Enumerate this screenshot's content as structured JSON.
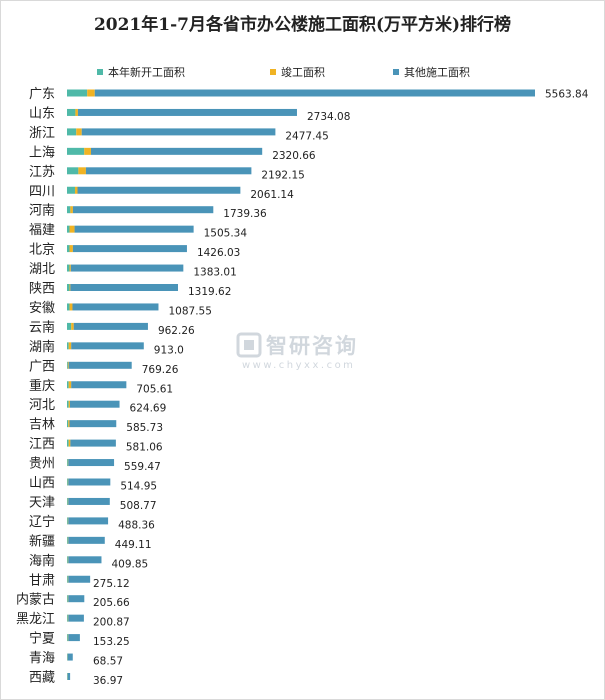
{
  "chart_data": {
    "type": "bar",
    "orientation": "horizontal",
    "stacked": true,
    "title": "2021年1-7月各省市办公楼施工面积(万平方米)排行榜",
    "legend_position": "top",
    "categories": [
      "广东",
      "山东",
      "浙江",
      "上海",
      "江苏",
      "四川",
      "河南",
      "福建",
      "北京",
      "湖北",
      "陕西",
      "安徽",
      "云南",
      "湖南",
      "广西",
      "重庆",
      "河北",
      "吉林",
      "江西",
      "贵州",
      "山西",
      "天津",
      "辽宁",
      "新疆",
      "海南",
      "甘肃",
      "内蒙古",
      "黑龙江",
      "宁夏",
      "青海",
      "西藏"
    ],
    "totals": [
      "5563.84",
      "2734.08",
      "2477.45",
      "2320.66",
      "2192.15",
      "2061.14",
      "1739.36",
      "1505.34",
      "1426.03",
      "1383.01",
      "1319.62",
      "1087.55",
      "962.26",
      "913.0",
      "769.26",
      "705.61",
      "624.69",
      "585.73",
      "581.06",
      "559.47",
      "514.95",
      "508.77",
      "488.36",
      "449.11",
      "409.85",
      "275.12",
      "205.66",
      "200.87",
      "153.25",
      "68.57",
      "36.97"
    ],
    "series": [
      {
        "name": "本年新开工面积",
        "color": "#4fb9a8",
        "values": [
          240,
          100,
          110,
          205,
          135,
          95,
          40,
          30,
          30,
          30,
          30,
          30,
          50,
          20,
          10,
          20,
          20,
          15,
          20,
          10,
          10,
          10,
          10,
          10,
          10,
          10,
          10,
          10,
          10,
          5,
          5
        ]
      },
      {
        "name": "竣工面积",
        "color": "#f0b323",
        "values": [
          90,
          30,
          65,
          80,
          90,
          30,
          30,
          60,
          40,
          15,
          10,
          35,
          30,
          30,
          10,
          30,
          15,
          15,
          20,
          5,
          5,
          5,
          5,
          5,
          5,
          5,
          5,
          5,
          5,
          3,
          3
        ]
      },
      {
        "name": "其他施工面积",
        "color": "#4a94b8",
        "values": [
          5233.84,
          2604.08,
          2302.45,
          2035.66,
          1967.15,
          1936.14,
          1669.36,
          1415.34,
          1356.03,
          1338.01,
          1279.62,
          1022.55,
          882.26,
          863.0,
          749.26,
          655.61,
          589.69,
          555.73,
          541.06,
          544.47,
          499.95,
          493.77,
          473.36,
          434.11,
          394.85,
          260.12,
          190.66,
          185.87,
          138.25,
          60.57,
          28.97
        ]
      }
    ]
  },
  "watermark": {
    "name": "智研咨询",
    "url": "www.chyxx.com"
  }
}
